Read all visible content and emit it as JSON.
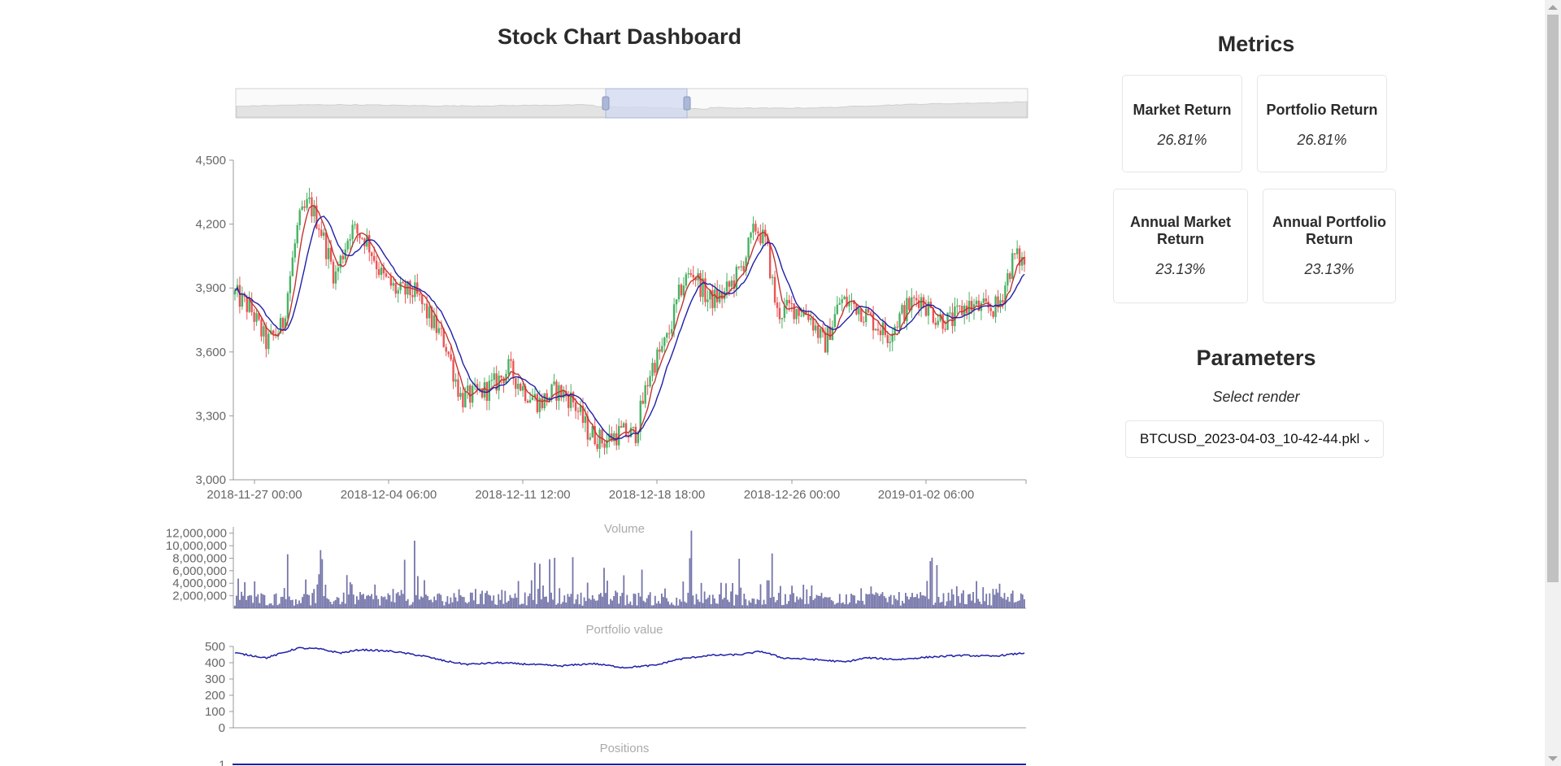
{
  "page": {
    "title": "Stock Chart Dashboard"
  },
  "colors": {
    "up": "#47b262",
    "down": "#eb5454",
    "ma_fast": "#c23531",
    "ma_slow": "#1f1fa8",
    "volume": "#5d5d9b",
    "portfolio": "#1f1fa8",
    "slider": "#d2daf0"
  },
  "chart_data": [
    {
      "type": "candlestick",
      "title": "",
      "ylim": [
        3000,
        4500
      ],
      "y_ticks": [
        "3,000",
        "3,300",
        "3,600",
        "3,900",
        "4,200",
        "4,500"
      ],
      "x_ticks": [
        "2018-11-27 00:00",
        "2018-12-04 06:00",
        "2018-12-11 12:00",
        "2018-12-18 18:00",
        "2018-12-26 00:00",
        "2019-01-02 06:00"
      ],
      "series_key_points": [
        [
          0,
          3870
        ],
        [
          3,
          3800
        ],
        [
          6,
          3640
        ],
        [
          9,
          3720
        ],
        [
          12,
          4200
        ],
        [
          14,
          4300
        ],
        [
          16,
          4200
        ],
        [
          19,
          3950
        ],
        [
          22,
          4180
        ],
        [
          25,
          4130
        ],
        [
          28,
          3950
        ],
        [
          31,
          3880
        ],
        [
          34,
          3880
        ],
        [
          37,
          3760
        ],
        [
          40,
          3640
        ],
        [
          43,
          3380
        ],
        [
          46,
          3400
        ],
        [
          49,
          3440
        ],
        [
          52,
          3520
        ],
        [
          55,
          3420
        ],
        [
          58,
          3360
        ],
        [
          61,
          3420
        ],
        [
          64,
          3380
        ],
        [
          67,
          3230
        ],
        [
          70,
          3180
        ],
        [
          73,
          3220
        ],
        [
          76,
          3210
        ],
        [
          79,
          3520
        ],
        [
          82,
          3650
        ],
        [
          85,
          3920
        ],
        [
          87,
          3980
        ],
        [
          90,
          3840
        ],
        [
          93,
          3870
        ],
        [
          96,
          3980
        ],
        [
          99,
          4190
        ],
        [
          101,
          4100
        ],
        [
          103,
          3780
        ],
        [
          106,
          3810
        ],
        [
          109,
          3780
        ],
        [
          112,
          3630
        ],
        [
          115,
          3840
        ],
        [
          118,
          3820
        ],
        [
          121,
          3750
        ],
        [
          124,
          3680
        ],
        [
          127,
          3790
        ],
        [
          130,
          3860
        ],
        [
          133,
          3770
        ],
        [
          136,
          3740
        ],
        [
          139,
          3820
        ],
        [
          142,
          3800
        ],
        [
          145,
          3810
        ],
        [
          148,
          4050
        ],
        [
          150,
          4020
        ]
      ]
    },
    {
      "type": "bar",
      "title": "Volume",
      "ylim": [
        0,
        13000000
      ],
      "y_ticks": [
        "2,000,000",
        "4,000,000",
        "6,000,000",
        "8,000,000",
        "10,000,000",
        "12,000,000"
      ]
    },
    {
      "type": "line",
      "title": "Portfolio value",
      "ylim": [
        0,
        500
      ],
      "y_ticks": [
        "0",
        "100",
        "200",
        "300",
        "400",
        "500"
      ],
      "series_key_points": [
        [
          0,
          460
        ],
        [
          6,
          430
        ],
        [
          12,
          490
        ],
        [
          16,
          485
        ],
        [
          20,
          460
        ],
        [
          24,
          480
        ],
        [
          30,
          470
        ],
        [
          36,
          440
        ],
        [
          40,
          410
        ],
        [
          44,
          390
        ],
        [
          50,
          400
        ],
        [
          56,
          390
        ],
        [
          62,
          380
        ],
        [
          68,
          395
        ],
        [
          74,
          370
        ],
        [
          80,
          385
        ],
        [
          84,
          420
        ],
        [
          90,
          445
        ],
        [
          96,
          450
        ],
        [
          100,
          470
        ],
        [
          104,
          430
        ],
        [
          110,
          420
        ],
        [
          116,
          405
        ],
        [
          120,
          430
        ],
        [
          126,
          420
        ],
        [
          132,
          435
        ],
        [
          138,
          445
        ],
        [
          144,
          440
        ],
        [
          150,
          460
        ]
      ]
    },
    {
      "type": "line",
      "title": "Positions",
      "y_ticks": [
        "1"
      ]
    }
  ],
  "metrics": {
    "title": "Metrics",
    "cards": [
      {
        "label": "Market Return",
        "value": "26.81%"
      },
      {
        "label": "Portfolio Return",
        "value": "26.81%"
      },
      {
        "label": "Annual Market Return",
        "value": "23.13%"
      },
      {
        "label": "Annual Portfolio Return",
        "value": "23.13%"
      }
    ]
  },
  "parameters": {
    "title": "Parameters",
    "select_label": "Select render",
    "selected_render": "BTCUSD_2023-04-03_10-42-44.pkl"
  }
}
